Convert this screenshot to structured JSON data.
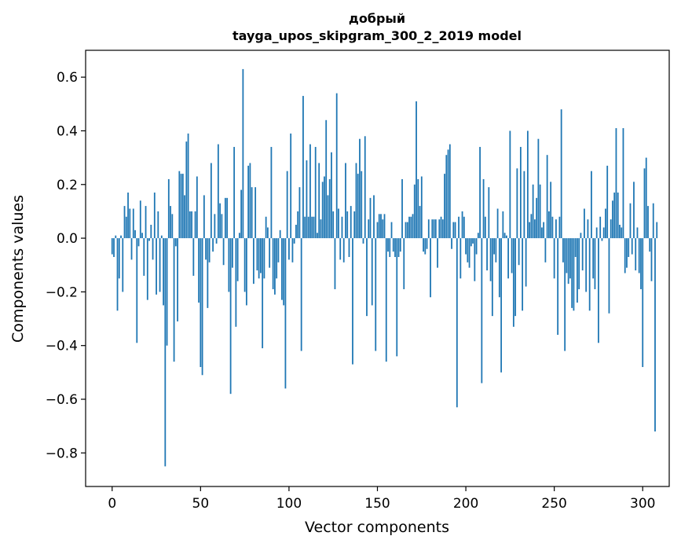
{
  "chart_data": {
    "type": "bar",
    "title": "добрый",
    "subtitle": "tayga_upos_skipgram_300_2_2019 model",
    "xlabel": "Vector components",
    "ylabel": "Components values",
    "xlim": [
      -15,
      315
    ],
    "ylim": [
      -0.925,
      0.7
    ],
    "xticks": [
      0,
      50,
      100,
      150,
      200,
      250,
      300
    ],
    "xtick_labels": [
      "0",
      "50",
      "100",
      "150",
      "200",
      "250",
      "300"
    ],
    "yticks": [
      -0.8,
      -0.6,
      -0.4,
      -0.2,
      0.0,
      0.2,
      0.4,
      0.6
    ],
    "ytick_labels": [
      "−0.8",
      "−0.6",
      "−0.4",
      "−0.2",
      "0.0",
      "0.2",
      "0.4",
      "0.6"
    ],
    "color": "#1f77b4",
    "x_start": 0,
    "values": [
      -0.06,
      -0.07,
      0.01,
      -0.27,
      -0.15,
      0.01,
      -0.2,
      0.12,
      0.08,
      0.17,
      0.11,
      -0.08,
      0.11,
      0.03,
      -0.39,
      -0.03,
      0.14,
      0.02,
      -0.14,
      0.12,
      -0.23,
      -0.01,
      0.05,
      -0.08,
      0.17,
      -0.21,
      0.1,
      -0.2,
      0.01,
      -0.25,
      -0.85,
      -0.4,
      0.22,
      0.12,
      0.09,
      -0.46,
      -0.03,
      -0.31,
      0.25,
      0.24,
      0.24,
      0.16,
      0.36,
      0.39,
      0.1,
      0.1,
      -0.14,
      0.1,
      0.23,
      -0.24,
      -0.48,
      -0.51,
      0.16,
      -0.08,
      -0.26,
      -0.09,
      0.28,
      -0.05,
      0.09,
      -0.02,
      0.35,
      0.13,
      0.09,
      -0.1,
      0.15,
      0.15,
      -0.2,
      -0.58,
      -0.11,
      0.34,
      -0.33,
      -0.16,
      0.02,
      0.18,
      0.63,
      -0.2,
      -0.25,
      0.27,
      0.28,
      0.19,
      -0.17,
      0.19,
      -0.12,
      -0.15,
      -0.13,
      -0.41,
      -0.15,
      0.08,
      0.04,
      -0.11,
      0.34,
      -0.19,
      -0.21,
      -0.15,
      -0.09,
      0.03,
      -0.23,
      -0.25,
      -0.56,
      0.25,
      -0.08,
      0.39,
      -0.09,
      -0.02,
      0.05,
      0.1,
      0.19,
      -0.42,
      0.53,
      0.08,
      0.29,
      0.08,
      0.35,
      0.08,
      0.08,
      0.34,
      0.02,
      0.28,
      0.07,
      0.21,
      0.23,
      0.44,
      0.16,
      0.22,
      0.32,
      0.1,
      -0.19,
      0.54,
      0.11,
      -0.08,
      0.08,
      -0.09,
      0.28,
      0.1,
      -0.07,
      0.12,
      -0.47,
      0.1,
      0.28,
      0.24,
      0.37,
      0.25,
      -0.02,
      0.38,
      -0.29,
      0.07,
      0.15,
      -0.25,
      0.16,
      -0.42,
      0.06,
      0.09,
      0.09,
      0.07,
      0.09,
      -0.46,
      -0.05,
      -0.07,
      0.06,
      -0.05,
      -0.07,
      -0.44,
      -0.07,
      -0.05,
      0.22,
      -0.19,
      0.06,
      0.06,
      0.08,
      0.08,
      0.09,
      0.2,
      0.51,
      0.22,
      0.12,
      0.23,
      -0.05,
      -0.06,
      -0.04,
      0.07,
      -0.22,
      0.07,
      0.07,
      0.07,
      -0.11,
      0.07,
      0.08,
      0.07,
      0.24,
      0.31,
      0.33,
      0.35,
      -0.04,
      0.06,
      0.06,
      -0.63,
      0.08,
      -0.15,
      0.1,
      0.08,
      -0.06,
      -0.09,
      -0.11,
      -0.03,
      -0.02,
      -0.16,
      -0.06,
      0.02,
      0.34,
      -0.54,
      0.22,
      0.08,
      -0.12,
      0.19,
      -0.16,
      -0.29,
      -0.06,
      -0.09,
      0.11,
      -0.22,
      -0.5,
      0.1,
      0.02,
      0.01,
      -0.15,
      0.4,
      -0.13,
      -0.33,
      -0.29,
      0.26,
      -0.1,
      0.34,
      -0.27,
      0.25,
      -0.18,
      0.4,
      0.06,
      0.09,
      0.2,
      0.07,
      0.15,
      0.37,
      0.2,
      0.04,
      0.06,
      -0.09,
      0.31,
      0.1,
      0.21,
      0.08,
      -0.15,
      0.07,
      -0.36,
      0.08,
      0.48,
      -0.09,
      -0.42,
      -0.13,
      -0.17,
      -0.15,
      -0.26,
      -0.27,
      -0.07,
      -0.24,
      -0.19,
      0.02,
      -0.12,
      0.11,
      -0.2,
      0.07,
      -0.27,
      0.25,
      -0.15,
      -0.19,
      0.04,
      -0.39,
      0.08,
      -0.01,
      0.04,
      0.11,
      0.27,
      -0.28,
      0.07,
      0.14,
      0.17,
      0.41,
      0.17,
      0.05,
      0.04,
      0.41,
      -0.13,
      -0.11,
      -0.07,
      0.13,
      -0.06,
      0.21,
      -0.12,
      0.04,
      -0.13,
      -0.19,
      -0.48,
      0.26,
      0.3,
      0.12,
      -0.05,
      -0.16,
      0.13,
      -0.72,
      0.06
    ]
  }
}
